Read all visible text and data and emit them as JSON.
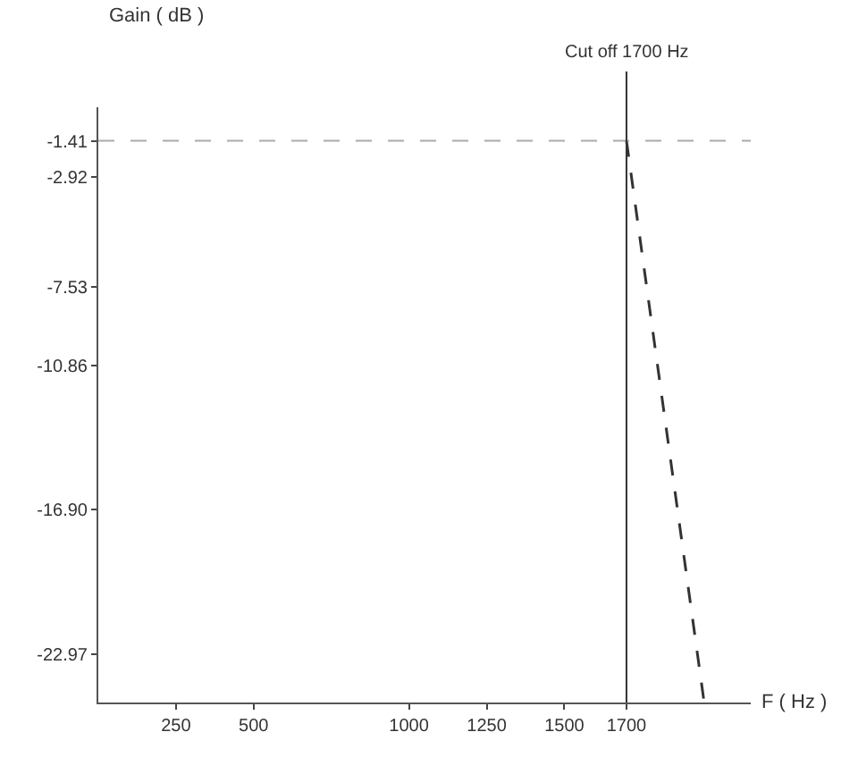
{
  "chart_data": {
    "type": "line",
    "xlabel": "F ( Hz )",
    "ylabel": "Gain ( dB )",
    "x": [
      1700,
      1950
    ],
    "series": [
      {
        "color": "#333333",
        "values": [
          -1.41,
          -25
        ],
        "line_style": "dashed"
      }
    ],
    "xlim": [
      0,
      2100
    ],
    "xticks": [
      250,
      500,
      1000,
      1250,
      1500,
      1700
    ],
    "ylim": [
      -25,
      0
    ],
    "yticks": [
      -1.41,
      -2.92,
      -7.53,
      -10.86,
      {
        "value": -16.9,
        "label": "-16.90"
      },
      -22.97
    ],
    "ref_lines": [
      {
        "axis": "y",
        "value": -1.41,
        "color": "#aaaaaa",
        "line_style": "dashed"
      },
      {
        "axis": "x",
        "value": 1700,
        "label": "Cut off 1700 Hz",
        "color": "#333333",
        "line_style": "solid"
      }
    ],
    "grid": false,
    "marker": "none"
  }
}
